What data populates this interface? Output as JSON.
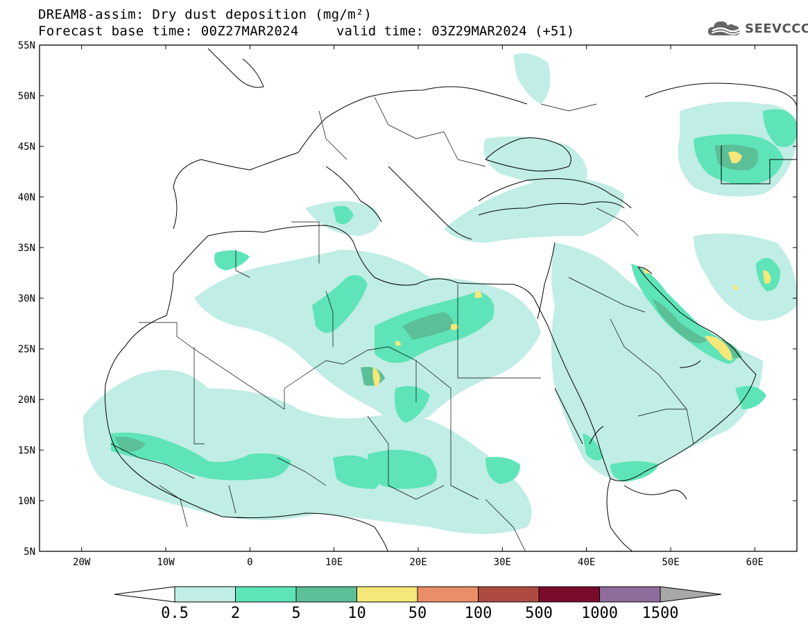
{
  "header": {
    "title": "DREAM8-assim: Dry dust deposition (mg/m²)",
    "base_time": "Forecast base time: 00Z27MAR2024",
    "valid_time": "valid time: 03Z29MAR2024 (+51)"
  },
  "logo": {
    "text": "SEEVCCC",
    "icon": "cloud-icon"
  },
  "map": {
    "lat_range": [
      5,
      55
    ],
    "lon_range": [
      -25,
      65
    ],
    "lat_ticks": [
      "55N",
      "50N",
      "45N",
      "40N",
      "35N",
      "30N",
      "25N",
      "20N",
      "15N",
      "10N",
      "5N"
    ],
    "lon_ticks": [
      "20W",
      "10W",
      "0",
      "10E",
      "20E",
      "30E",
      "40E",
      "50E",
      "60E"
    ]
  },
  "colorbar": {
    "labels": [
      "0.5",
      "2",
      "5",
      "10",
      "50",
      "100",
      "500",
      "1000",
      "1500"
    ],
    "colors": [
      "#c0ede5",
      "#5ee4b8",
      "#5bbf98",
      "#f5e87a",
      "#ea8e6a",
      "#ad4b40",
      "#7a0b2b",
      "#8e6d9d",
      "#a8a8a8"
    ]
  }
}
